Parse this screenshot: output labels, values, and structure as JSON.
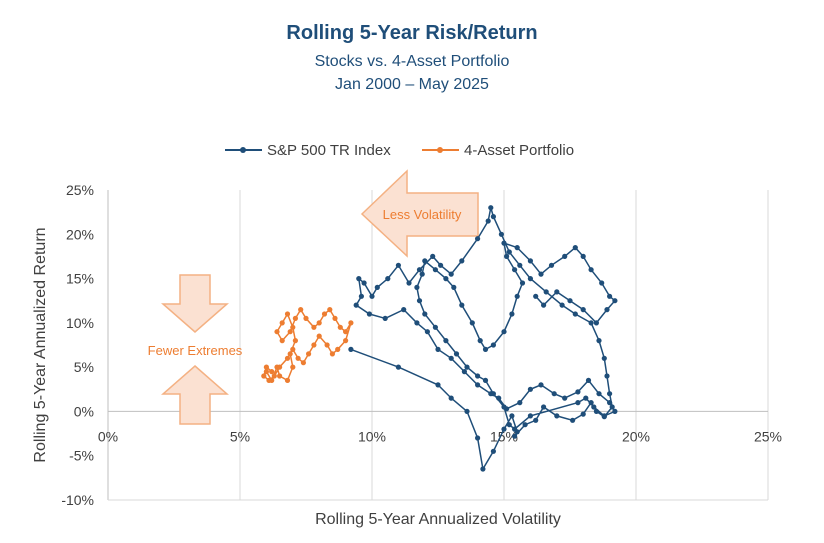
{
  "chart_data": {
    "type": "scatter",
    "title": "Rolling 5-Year Risk/Return",
    "subtitle": "Stocks vs. 4-Asset Portfolio",
    "date_range": "Jan 2000 – May 2025",
    "xlabel": "Rolling 5-Year Annualized Volatility",
    "ylabel": "Rolling 5-Year Annualized Return",
    "xlim": [
      0,
      25
    ],
    "ylim": [
      -10,
      25
    ],
    "x_ticks": [
      "0%",
      "5%",
      "10%",
      "15%",
      "20%",
      "25%"
    ],
    "y_ticks": [
      "25%",
      "20%",
      "15%",
      "10%",
      "5%",
      "0%",
      "-5%",
      "-10%"
    ],
    "vertical_grid": true,
    "horizontal_grid": false,
    "legend_position": "top",
    "annotations": {
      "less_volatility": "Less Volatility",
      "fewer_extremes": "Fewer Extremes"
    },
    "colors": {
      "sp500": "#1f4e79",
      "portfolio": "#ed7d31",
      "arrow_fill": "#fbe1d2",
      "arrow_stroke": "#f4b183"
    },
    "series": [
      {
        "name": "S&P 500 TR Index",
        "points": [
          [
            9.2,
            7.0
          ],
          [
            11.0,
            5.0
          ],
          [
            12.5,
            3.0
          ],
          [
            13.0,
            1.5
          ],
          [
            13.6,
            0.0
          ],
          [
            14.0,
            -3.0
          ],
          [
            14.2,
            -6.5
          ],
          [
            14.6,
            -4.5
          ],
          [
            15.0,
            -2.0
          ],
          [
            15.3,
            -0.5
          ],
          [
            15.5,
            -2.3
          ],
          [
            15.4,
            -2.8
          ],
          [
            15.8,
            -1.5
          ],
          [
            16.2,
            -1.0
          ],
          [
            16.5,
            0.5
          ],
          [
            17.0,
            -0.5
          ],
          [
            17.6,
            -1.0
          ],
          [
            18.0,
            -0.3
          ],
          [
            18.3,
            1.0
          ],
          [
            18.5,
            0.0
          ],
          [
            18.8,
            -0.6
          ],
          [
            19.1,
            0.5
          ],
          [
            19.0,
            2.0
          ],
          [
            18.9,
            4.0
          ],
          [
            18.8,
            6.0
          ],
          [
            18.6,
            8.0
          ],
          [
            18.3,
            10.0
          ],
          [
            17.7,
            11.0
          ],
          [
            17.2,
            12.0
          ],
          [
            16.6,
            13.5
          ],
          [
            16.0,
            15.0
          ],
          [
            15.6,
            16.5
          ],
          [
            15.2,
            18.0
          ],
          [
            14.9,
            20.0
          ],
          [
            14.6,
            22.0
          ],
          [
            14.5,
            23.0
          ],
          [
            14.4,
            21.5
          ],
          [
            14.0,
            19.5
          ],
          [
            13.4,
            17.0
          ],
          [
            13.0,
            15.5
          ],
          [
            12.6,
            16.5
          ],
          [
            12.3,
            17.5
          ],
          [
            11.8,
            16.0
          ],
          [
            11.4,
            14.5
          ],
          [
            11.0,
            16.5
          ],
          [
            10.6,
            15.0
          ],
          [
            10.2,
            14.0
          ],
          [
            10.0,
            13.0
          ],
          [
            9.7,
            14.5
          ],
          [
            9.5,
            15.0
          ],
          [
            9.6,
            13.0
          ],
          [
            9.4,
            12.0
          ],
          [
            9.9,
            11.0
          ],
          [
            10.5,
            10.5
          ],
          [
            11.2,
            11.5
          ],
          [
            11.7,
            10.0
          ],
          [
            12.1,
            9.0
          ],
          [
            12.5,
            7.0
          ],
          [
            13.0,
            6.0
          ],
          [
            13.5,
            4.5
          ],
          [
            14.0,
            3.0
          ],
          [
            14.5,
            2.0
          ],
          [
            14.8,
            1.5
          ],
          [
            15.1,
            0.3
          ],
          [
            15.6,
            1.0
          ],
          [
            16.0,
            2.5
          ],
          [
            16.4,
            3.0
          ],
          [
            16.9,
            2.0
          ],
          [
            17.3,
            1.5
          ],
          [
            17.8,
            2.2
          ],
          [
            18.2,
            3.5
          ],
          [
            18.6,
            2.0
          ],
          [
            19.0,
            1.0
          ],
          [
            19.2,
            0.0
          ],
          [
            18.8,
            -0.5
          ],
          [
            18.4,
            0.5
          ],
          [
            18.1,
            1.5
          ],
          [
            17.8,
            1.0
          ],
          [
            16.0,
            -0.5
          ],
          [
            15.4,
            -2.0
          ],
          [
            15.2,
            -1.5
          ],
          [
            15.0,
            0.5
          ],
          [
            14.6,
            2.0
          ],
          [
            14.3,
            3.5
          ],
          [
            14.0,
            4.0
          ],
          [
            13.6,
            5.0
          ],
          [
            13.2,
            6.5
          ],
          [
            12.8,
            8.0
          ],
          [
            12.4,
            9.5
          ],
          [
            12.0,
            11.0
          ],
          [
            11.8,
            12.5
          ],
          [
            11.7,
            14.0
          ],
          [
            11.9,
            15.5
          ],
          [
            12.0,
            17.0
          ],
          [
            12.4,
            16.0
          ],
          [
            12.8,
            15.0
          ],
          [
            13.1,
            14.0
          ],
          [
            13.4,
            12.0
          ],
          [
            13.8,
            10.0
          ],
          [
            14.1,
            8.0
          ],
          [
            14.3,
            7.0
          ],
          [
            14.6,
            7.5
          ],
          [
            15.0,
            9.0
          ],
          [
            15.3,
            11.0
          ],
          [
            15.5,
            13.0
          ],
          [
            15.7,
            14.5
          ],
          [
            15.4,
            16.0
          ],
          [
            15.1,
            17.5
          ],
          [
            15.0,
            19.0
          ],
          [
            15.5,
            18.5
          ],
          [
            16.0,
            17.0
          ],
          [
            16.4,
            15.5
          ],
          [
            16.8,
            16.5
          ],
          [
            17.3,
            17.5
          ],
          [
            17.7,
            18.5
          ],
          [
            18.0,
            17.5
          ],
          [
            18.3,
            16.0
          ],
          [
            18.7,
            14.5
          ],
          [
            19.0,
            13.0
          ],
          [
            19.2,
            12.5
          ],
          [
            18.9,
            11.5
          ],
          [
            18.5,
            10.0
          ],
          [
            18.0,
            11.5
          ],
          [
            17.5,
            12.5
          ],
          [
            17.0,
            13.5
          ],
          [
            16.5,
            12.0
          ],
          [
            16.2,
            13.0
          ]
        ]
      },
      {
        "name": "4-Asset Portfolio",
        "points": [
          [
            6.0,
            4.5
          ],
          [
            6.2,
            3.5
          ],
          [
            6.4,
            5.0
          ],
          [
            6.5,
            4.0
          ],
          [
            6.8,
            3.5
          ],
          [
            7.0,
            5.0
          ],
          [
            6.9,
            6.5
          ],
          [
            7.1,
            8.0
          ],
          [
            7.0,
            9.5
          ],
          [
            6.8,
            11.0
          ],
          [
            6.6,
            10.0
          ],
          [
            6.4,
            9.0
          ],
          [
            6.6,
            8.0
          ],
          [
            6.9,
            9.0
          ],
          [
            7.1,
            10.5
          ],
          [
            7.3,
            11.5
          ],
          [
            7.5,
            10.5
          ],
          [
            7.8,
            9.5
          ],
          [
            8.0,
            10.0
          ],
          [
            8.2,
            11.0
          ],
          [
            8.4,
            11.5
          ],
          [
            8.6,
            10.5
          ],
          [
            8.8,
            9.5
          ],
          [
            9.0,
            9.0
          ],
          [
            9.2,
            10.0
          ],
          [
            9.0,
            8.0
          ],
          [
            8.7,
            7.0
          ],
          [
            8.5,
            6.5
          ],
          [
            8.3,
            7.5
          ],
          [
            8.0,
            8.5
          ],
          [
            7.8,
            7.5
          ],
          [
            7.6,
            6.5
          ],
          [
            7.4,
            5.5
          ],
          [
            7.2,
            6.0
          ],
          [
            7.0,
            7.0
          ],
          [
            6.8,
            6.0
          ],
          [
            6.5,
            5.0
          ],
          [
            6.3,
            4.0
          ],
          [
            6.1,
            3.5
          ],
          [
            5.9,
            4.0
          ],
          [
            6.0,
            5.0
          ],
          [
            6.2,
            4.5
          ]
        ]
      }
    ]
  }
}
